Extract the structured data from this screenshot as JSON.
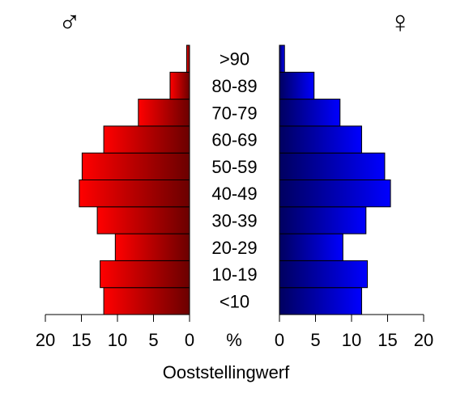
{
  "chart_data": {
    "type": "bar",
    "subtype": "population-pyramid",
    "title": "Ooststellingwerf",
    "unit_label": "%",
    "categories": [
      "<10",
      "10-19",
      "20-29",
      "30-39",
      "40-49",
      "50-59",
      "60-69",
      "70-79",
      "80-89",
      ">90"
    ],
    "series": [
      {
        "name": "♂",
        "side": "left",
        "values": [
          11.9,
          12.4,
          10.3,
          12.8,
          15.3,
          14.9,
          11.9,
          7.1,
          2.7,
          0.4
        ],
        "color_light": "#ff0000",
        "color_dark": "#6b0000"
      },
      {
        "name": "♀",
        "side": "right",
        "values": [
          11.4,
          12.2,
          8.8,
          12.0,
          15.4,
          14.6,
          11.4,
          8.4,
          4.8,
          0.7
        ],
        "color_light": "#0000ff",
        "color_dark": "#000060"
      }
    ],
    "xlim": [
      0,
      20
    ],
    "x_ticks": [
      0,
      5,
      10,
      15,
      20
    ],
    "grid": false,
    "legend": "symbols above each half"
  }
}
